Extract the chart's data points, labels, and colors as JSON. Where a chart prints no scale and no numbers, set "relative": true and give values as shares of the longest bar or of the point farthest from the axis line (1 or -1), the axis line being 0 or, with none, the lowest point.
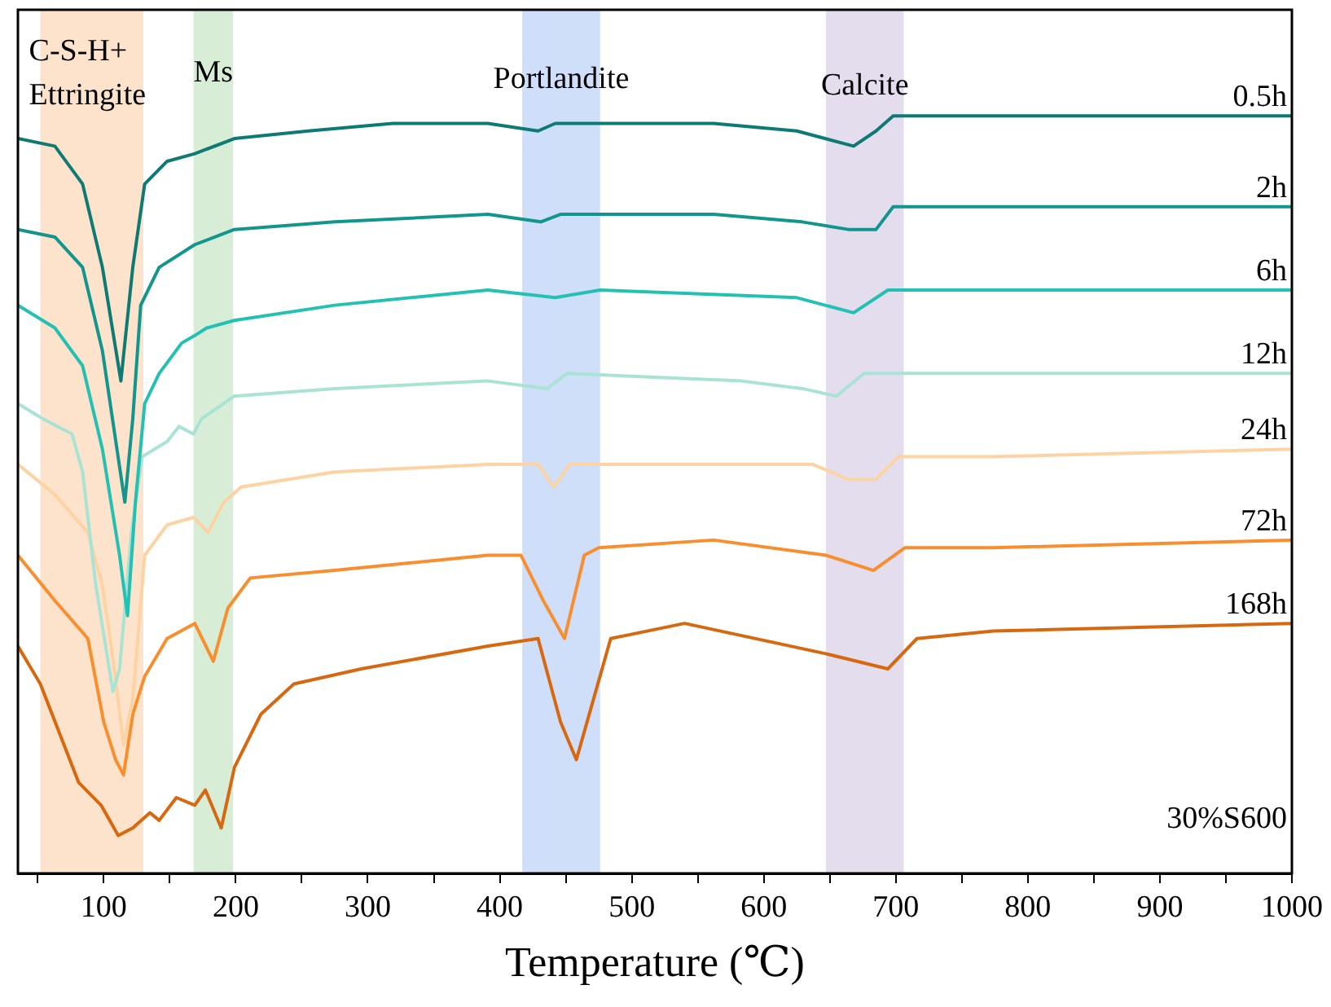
{
  "chart_data": {
    "type": "line",
    "xlabel": "Temperature (℃)",
    "relative": true,
    "grid": false,
    "legend": false,
    "tick_labels": "x",
    "marker": "none",
    "line_style": "solid",
    "xlim": [
      35,
      1000
    ],
    "xticks": [
      {
        "value": 50,
        "label": null
      },
      100,
      {
        "value": 150,
        "label": null
      },
      200,
      {
        "value": 250,
        "label": null
      },
      300,
      {
        "value": 350,
        "label": null
      },
      400,
      {
        "value": 450,
        "label": null
      },
      500,
      {
        "value": 550,
        "label": null
      },
      600,
      {
        "value": 650,
        "label": null
      },
      700,
      {
        "value": 750,
        "label": null
      },
      800,
      {
        "value": 850,
        "label": null
      },
      900,
      {
        "value": 950,
        "label": null
      },
      1000
    ],
    "bands": [
      {
        "axis": "x",
        "from": 52,
        "to": 130,
        "label": "C-S-H+\nEttringite",
        "color": "#fde3cb"
      },
      {
        "axis": "x",
        "from": 168,
        "to": 198,
        "label": "Ms",
        "color": "#d7edd6"
      },
      {
        "axis": "x",
        "from": 417,
        "to": 476,
        "label": "Portlandite",
        "color": "#cfdef9"
      },
      {
        "axis": "x",
        "from": 647,
        "to": 706,
        "label": "Calcite",
        "color": "#e3dded"
      }
    ],
    "annotations": [
      "30%S600"
    ],
    "series": [
      {
        "name": "0.5h",
        "color": "#0d7a73",
        "x": [
          35,
          63,
          84,
          99,
          113,
          122,
          131,
          148,
          169,
          199,
          255,
          319,
          391,
          429,
          442,
          562,
          625,
          668,
          685,
          698,
          774,
          859,
          1000
        ],
        "values": [
          0.97,
          0.96,
          0.91,
          0.8,
          0.65,
          0.8,
          0.91,
          0.94,
          0.95,
          0.97,
          0.98,
          0.99,
          0.99,
          0.98,
          0.99,
          0.99,
          0.98,
          0.96,
          0.98,
          1,
          1,
          1,
          1
        ]
      },
      {
        "name": "2h",
        "color": "#11958d",
        "x": [
          35,
          63,
          84,
          99,
          110,
          116,
          122,
          128,
          142,
          169,
          199,
          275,
          391,
          431,
          446,
          562,
          629,
          664,
          685,
          698,
          774,
          1000
        ],
        "values": [
          0.85,
          0.84,
          0.8,
          0.69,
          0.56,
          0.49,
          0.6,
          0.75,
          0.8,
          0.83,
          0.85,
          0.86,
          0.87,
          0.86,
          0.87,
          0.87,
          0.86,
          0.85,
          0.85,
          0.88,
          0.88,
          0.88
        ]
      },
      {
        "name": "6h",
        "color": "#23c0b4",
        "x": [
          35,
          63,
          84,
          99,
          112,
          118,
          124,
          131,
          142,
          159,
          169,
          178,
          199,
          275,
          391,
          442,
          476,
          625,
          668,
          694,
          774,
          1000
        ],
        "values": [
          0.75,
          0.72,
          0.67,
          0.56,
          0.42,
          0.34,
          0.49,
          0.62,
          0.66,
          0.7,
          0.71,
          0.72,
          0.73,
          0.75,
          0.77,
          0.76,
          0.77,
          0.76,
          0.74,
          0.77,
          0.77,
          0.77
        ]
      },
      {
        "name": "12h",
        "color": "#a8e3d4",
        "x": [
          35,
          54,
          76,
          84,
          94,
          107,
          112,
          121,
          129,
          148,
          157,
          168,
          174,
          199,
          275,
          391,
          436,
          451,
          583,
          629,
          655,
          676,
          774,
          1000
        ],
        "values": [
          0.62,
          0.6,
          0.58,
          0.53,
          0.38,
          0.24,
          0.27,
          0.45,
          0.55,
          0.57,
          0.59,
          0.58,
          0.6,
          0.63,
          0.64,
          0.65,
          0.64,
          0.66,
          0.65,
          0.64,
          0.63,
          0.66,
          0.66,
          0.66
        ]
      },
      {
        "name": "24h",
        "color": "#fdd3a4",
        "x": [
          35,
          63,
          88,
          99,
          108,
          115,
          122,
          131,
          148,
          168,
          179,
          191,
          204,
          275,
          391,
          429,
          441,
          453,
          637,
          664,
          685,
          702,
          774,
          1000
        ],
        "values": [
          0.54,
          0.5,
          0.45,
          0.38,
          0.27,
          0.17,
          0.23,
          0.42,
          0.46,
          0.47,
          0.45,
          0.49,
          0.51,
          0.53,
          0.54,
          0.54,
          0.51,
          0.54,
          0.54,
          0.52,
          0.52,
          0.55,
          0.55,
          0.56
        ]
      },
      {
        "name": "72h",
        "color": "#f98e2e",
        "x": [
          35,
          63,
          88,
          100,
          109,
          115,
          122,
          131,
          148,
          169,
          183,
          194,
          211,
          275,
          391,
          416,
          433,
          449,
          464,
          475,
          562,
          647,
          683,
          707,
          774,
          1000
        ],
        "values": [
          0.42,
          0.36,
          0.31,
          0.2,
          0.15,
          0.13,
          0.21,
          0.26,
          0.31,
          0.33,
          0.28,
          0.35,
          0.39,
          0.4,
          0.42,
          0.42,
          0.36,
          0.31,
          0.42,
          0.43,
          0.44,
          0.42,
          0.4,
          0.43,
          0.43,
          0.44
        ]
      },
      {
        "name": "168h",
        "color": "#d7680f",
        "x": [
          35,
          52,
          81,
          98,
          111,
          122,
          135,
          142,
          155,
          169,
          177,
          189,
          199,
          219,
          244,
          295,
          391,
          429,
          446,
          458,
          471,
          484,
          540,
          647,
          694,
          716,
          774,
          1000
        ],
        "values": [
          0.3,
          0.25,
          0.12,
          0.09,
          0.05,
          0.06,
          0.08,
          0.07,
          0.1,
          0.09,
          0.11,
          0.06,
          0.14,
          0.21,
          0.25,
          0.27,
          0.3,
          0.31,
          0.2,
          0.15,
          0.23,
          0.31,
          0.33,
          0.29,
          0.27,
          0.31,
          0.32,
          0.33
        ]
      }
    ]
  }
}
